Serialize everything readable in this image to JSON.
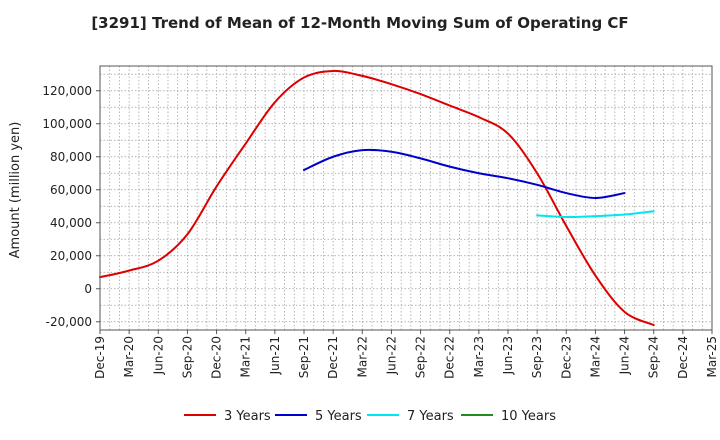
{
  "chart_data": {
    "type": "line",
    "title": "[3291]  Trend of Mean of 12-Month Moving Sum of Operating CF",
    "xlabel": "",
    "ylabel": "Amount (million yen)",
    "ylim": [
      -25000,
      135000
    ],
    "yticks": [
      -20000,
      0,
      20000,
      40000,
      60000,
      80000,
      100000,
      120000
    ],
    "ytick_labels": [
      "-20,000",
      "0",
      "20,000",
      "40,000",
      "60,000",
      "80,000",
      "100,000",
      "120,000"
    ],
    "x_categories": [
      "Dec-19",
      "Mar-20",
      "Jun-20",
      "Sep-20",
      "Dec-20",
      "Mar-21",
      "Jun-21",
      "Sep-21",
      "Dec-21",
      "Mar-22",
      "Jun-22",
      "Sep-22",
      "Dec-22",
      "Mar-23",
      "Jun-23",
      "Sep-23",
      "Dec-23",
      "Mar-24",
      "Jun-24",
      "Sep-24",
      "Dec-24",
      "Mar-25"
    ],
    "grid": true,
    "legend_position": "bottom",
    "series": [
      {
        "name": "3 Years",
        "color": "#dd0000",
        "start_index": 0,
        "values": [
          7000,
          11000,
          17000,
          33000,
          62000,
          88000,
          113000,
          128000,
          132000,
          129000,
          124000,
          118000,
          111000,
          104000,
          94000,
          70000,
          38000,
          8000,
          -14000,
          -22000
        ]
      },
      {
        "name": "5 Years",
        "color": "#0000cc",
        "start_index": 7,
        "values": [
          72000,
          80000,
          84000,
          83000,
          79000,
          74000,
          70000,
          67000,
          63000,
          58000,
          55000,
          58000
        ]
      },
      {
        "name": "7 Years",
        "color": "#00e5ee",
        "start_index": 15,
        "values": [
          44500,
          43500,
          44000,
          45000,
          47000
        ]
      },
      {
        "name": "10 Years",
        "color": "#228b22",
        "start_index": 0,
        "values": []
      }
    ]
  }
}
